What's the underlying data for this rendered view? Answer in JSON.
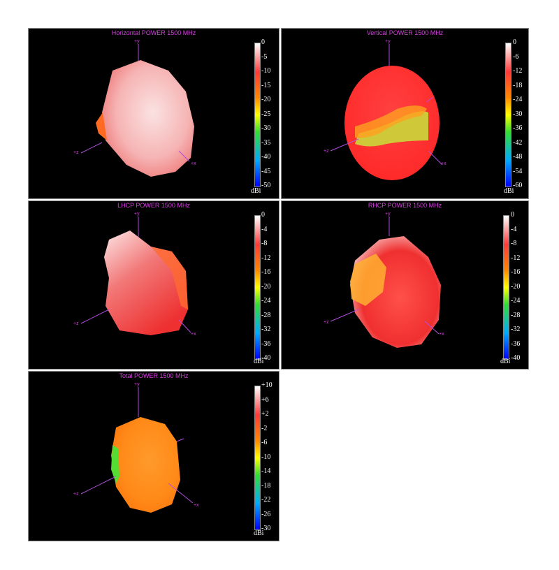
{
  "colors": {
    "panel_bg": "#000000",
    "title_color": "#d63fe0",
    "axis_color": "#b04ee0",
    "colorbar_gradient": [
      "#ffffff",
      "#ff3a3a",
      "#ff8800",
      "#ffff00",
      "#33dd33",
      "#00aaff",
      "#0000ff"
    ]
  },
  "chart_data": [
    {
      "type": "3d-radiation-pattern",
      "title": "Horizontal POWER 1500  MHz",
      "unit": "dBi",
      "colorbar_ticks": [
        "0",
        "-5",
        "-10",
        "-15",
        "-20",
        "-25",
        "-30",
        "-35",
        "-40",
        "-45",
        "-50"
      ],
      "range": [
        -50,
        0
      ],
      "axes": [
        "+y",
        "+z",
        "+x"
      ],
      "dominant_color": "#f3a0a0"
    },
    {
      "type": "3d-radiation-pattern",
      "title": "Vertical POWER 1500  MHz",
      "unit": "dBi",
      "colorbar_ticks": [
        "0",
        "-6",
        "-12",
        "-18",
        "-24",
        "-30",
        "-36",
        "-42",
        "-48",
        "-54",
        "-60"
      ],
      "range": [
        -60,
        0
      ],
      "axes": [
        "+y",
        "+z",
        "+x"
      ],
      "dominant_color": "#ff3a30"
    },
    {
      "type": "3d-radiation-pattern",
      "title": "LHCP POWER 1500  MHz",
      "unit": "dBi",
      "colorbar_ticks": [
        "0",
        "-4",
        "-8",
        "-12",
        "-16",
        "-20",
        "-24",
        "-28",
        "-32",
        "-36",
        "-40"
      ],
      "range": [
        -40,
        0
      ],
      "axes": [
        "+y",
        "+z",
        "+x"
      ],
      "dominant_color": "#f05050"
    },
    {
      "type": "3d-radiation-pattern",
      "title": "RHCP POWER 1500  MHz",
      "unit": "dBi",
      "colorbar_ticks": [
        "0",
        "-4",
        "-8",
        "-12",
        "-16",
        "-20",
        "-24",
        "-28",
        "-32",
        "-36",
        "-40"
      ],
      "range": [
        -40,
        0
      ],
      "axes": [
        "+y",
        "+z",
        "+x"
      ],
      "dominant_color": "#f23a36"
    },
    {
      "type": "3d-radiation-pattern",
      "title": "Total POWER 1500  MHz",
      "unit": "dBi",
      "colorbar_ticks": [
        "+10",
        "+6",
        "+2",
        "-2",
        "-6",
        "-10",
        "-14",
        "-18",
        "-22",
        "-26",
        "-30"
      ],
      "range": [
        -30,
        10
      ],
      "axes": [
        "+y",
        "+z",
        "+x"
      ],
      "dominant_color": "#ff8a1a"
    }
  ]
}
